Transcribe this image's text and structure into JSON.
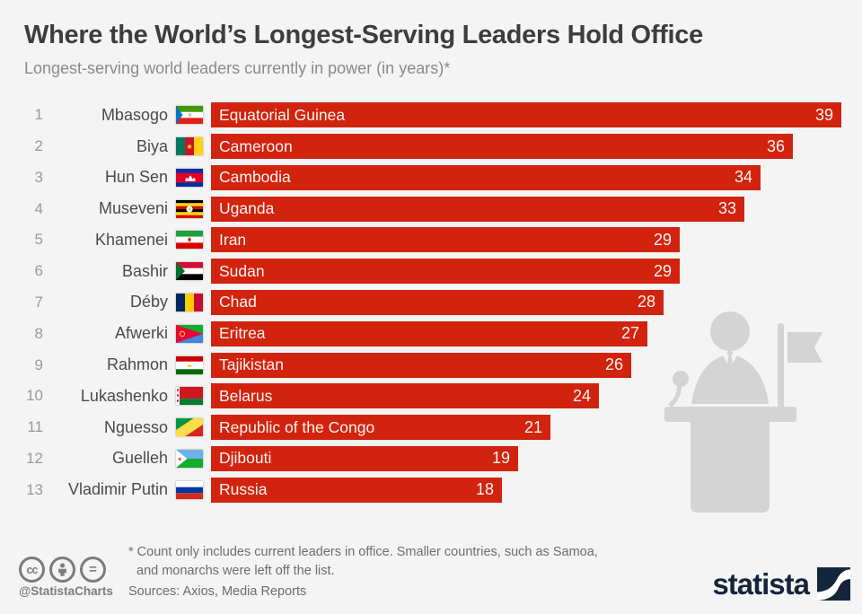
{
  "header": {
    "title": "Where the World’s Longest-Serving Leaders Hold Office",
    "subtitle": "Longest-serving world leaders currently in power (in years)*"
  },
  "chart_data": {
    "type": "bar",
    "orientation": "horizontal",
    "value_unit": "years in power",
    "xlim": [
      0,
      39
    ],
    "bar_color": "#d2230f",
    "legend": "none",
    "rows": [
      {
        "rank": 1,
        "leader": "Mbasogo",
        "country": "Equatorial Guinea",
        "value": 39,
        "flag": "equatorial-guinea"
      },
      {
        "rank": 2,
        "leader": "Biya",
        "country": "Cameroon",
        "value": 36,
        "flag": "cameroon"
      },
      {
        "rank": 3,
        "leader": "Hun Sen",
        "country": "Cambodia",
        "value": 34,
        "flag": "cambodia"
      },
      {
        "rank": 4,
        "leader": "Museveni",
        "country": "Uganda",
        "value": 33,
        "flag": "uganda"
      },
      {
        "rank": 5,
        "leader": "Khamenei",
        "country": "Iran",
        "value": 29,
        "flag": "iran"
      },
      {
        "rank": 6,
        "leader": "Bashir",
        "country": "Sudan",
        "value": 29,
        "flag": "sudan"
      },
      {
        "rank": 7,
        "leader": "Déby",
        "country": "Chad",
        "value": 28,
        "flag": "chad"
      },
      {
        "rank": 8,
        "leader": "Afwerki",
        "country": "Eritrea",
        "value": 27,
        "flag": "eritrea"
      },
      {
        "rank": 9,
        "leader": "Rahmon",
        "country": "Tajikistan",
        "value": 26,
        "flag": "tajikistan"
      },
      {
        "rank": 10,
        "leader": "Lukashenko",
        "country": "Belarus",
        "value": 24,
        "flag": "belarus"
      },
      {
        "rank": 11,
        "leader": "Nguesso",
        "country": "Republic of the Congo",
        "value": 21,
        "flag": "republic-of-the-congo"
      },
      {
        "rank": 12,
        "leader": "Guelleh",
        "country": "Djibouti",
        "value": 19,
        "flag": "djibouti"
      },
      {
        "rank": 13,
        "leader": "Vladimir Putin",
        "country": "Russia",
        "value": 18,
        "flag": "russia"
      }
    ]
  },
  "footer": {
    "footnote_line1": "* Count only includes current leaders in office. Smaller countries, such as Samoa,",
    "footnote_line2": "and monarchs were left off the list.",
    "sources": "Sources: Axios, Media Reports",
    "credit_handle": "@StatistaCharts",
    "license_badges": [
      "cc",
      "attribution",
      "no-derivatives"
    ],
    "brand": "statista"
  },
  "colors": {
    "background": "#f4f4f4",
    "bar_red": "#d2230f",
    "bar_text": "#fbf5ef",
    "title_text": "#3d3d3d",
    "subtitle_text": "#8a8a8a",
    "brand_navy": "#15253b",
    "silhouette_gray": "#d4d4d4"
  }
}
